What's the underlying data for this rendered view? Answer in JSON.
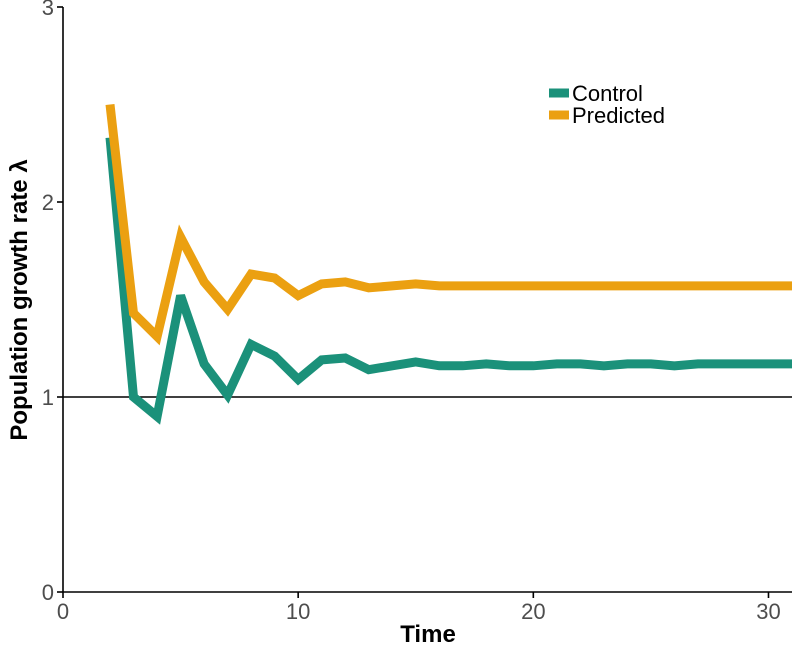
{
  "chart_data": {
    "type": "line",
    "title": "",
    "xlabel": "Time",
    "ylabel": "Population growth rate λ",
    "xlim": [
      0,
      31
    ],
    "ylim": [
      0,
      3
    ],
    "x_ticks": [
      0,
      10,
      20,
      30
    ],
    "y_ticks": [
      0,
      1,
      2,
      3
    ],
    "reference_line": {
      "y": 1,
      "color": "#000000"
    },
    "grid": false,
    "legend_position": "top-right",
    "x": [
      2,
      3,
      4,
      5,
      6,
      7,
      8,
      9,
      10,
      11,
      12,
      13,
      14,
      15,
      16,
      17,
      18,
      19,
      20,
      21,
      22,
      23,
      24,
      25,
      26,
      27,
      28,
      29,
      30,
      31
    ],
    "series": [
      {
        "name": "Control",
        "color": "#1b917a",
        "values": [
          2.33,
          1.0,
          0.9,
          1.52,
          1.17,
          1.01,
          1.27,
          1.21,
          1.09,
          1.19,
          1.2,
          1.14,
          1.16,
          1.18,
          1.16,
          1.16,
          1.17,
          1.16,
          1.16,
          1.17,
          1.17,
          1.16,
          1.17,
          1.17,
          1.16,
          1.17,
          1.17,
          1.17,
          1.17,
          1.17
        ]
      },
      {
        "name": "Predicted",
        "color": "#eba011",
        "values": [
          2.5,
          1.43,
          1.31,
          1.82,
          1.59,
          1.45,
          1.63,
          1.61,
          1.52,
          1.58,
          1.59,
          1.56,
          1.57,
          1.58,
          1.57,
          1.57,
          1.57,
          1.57,
          1.57,
          1.57,
          1.57,
          1.57,
          1.57,
          1.57,
          1.57,
          1.57,
          1.57,
          1.57,
          1.57,
          1.57
        ]
      }
    ]
  }
}
